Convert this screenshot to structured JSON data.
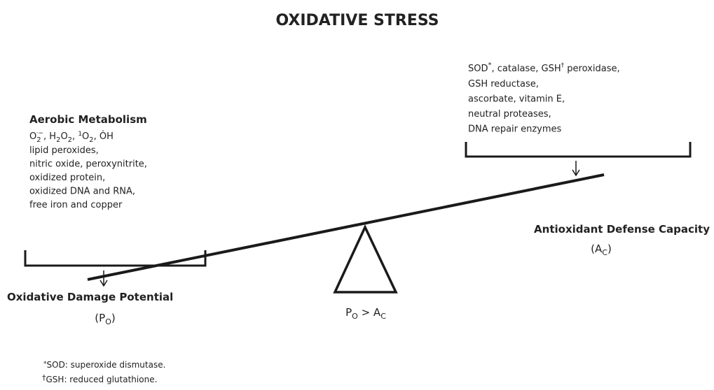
{
  "title": "OXIDATIVE STRESS",
  "left": {
    "heading": "Aerobic Metabolism",
    "first_line": [
      "O",
      "2",
      "·−",
      ", H",
      "2",
      "O",
      "2",
      ", ",
      "1",
      "O",
      "2",
      ", ",
      "ȮH"
    ],
    "items": [
      "lipid peroxides,",
      "nitric oxide, peroxynitrite,",
      "oxidized protein,",
      "oxidized DNA and RNA,",
      "free iron and copper"
    ]
  },
  "right": {
    "first_line": [
      "SOD",
      "*",
      ", catalase, GSH",
      "†",
      " peroxidase,"
    ],
    "items": [
      "GSH reductase,",
      "ascorbate, vitamin E,",
      "neutral proteases,",
      "DNA repair enzymes"
    ]
  },
  "left_label": {
    "name": "Oxidative Damage Potential",
    "symbol": [
      "(P",
      "O",
      ")"
    ]
  },
  "right_label": {
    "name": "Antioxidant Defense Capacity",
    "symbol": [
      "(A",
      "C",
      ")"
    ]
  },
  "fulcrum_label": [
    "P",
    "O",
    " > A",
    "C"
  ],
  "footnotes": [
    [
      "*",
      "SOD: superoxide dismutase."
    ],
    [
      "†",
      "GSH: reduced glutathione."
    ]
  ]
}
